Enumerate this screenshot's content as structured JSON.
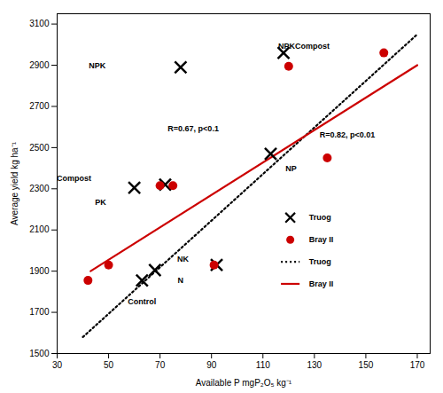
{
  "chart_data": {
    "type": "scatter",
    "xlabel": "Available P mgP₂O₅ kg⁻¹",
    "ylabel": "Average yield kg ha⁻¹",
    "xlim": [
      30,
      175
    ],
    "ylim": [
      1500,
      3150
    ],
    "xticks": [
      30,
      50,
      70,
      90,
      110,
      130,
      150,
      170
    ],
    "yticks": [
      1500,
      1700,
      1900,
      2100,
      2300,
      2500,
      2700,
      2900,
      3100
    ],
    "legend": "lower right",
    "series": [
      {
        "name": "Truog",
        "type": "scatter",
        "marker": "x",
        "color": "black",
        "x": [
          63,
          68,
          60,
          72,
          92,
          78,
          118,
          113
        ],
        "values": [
          1855,
          1905,
          2305,
          2320,
          1930,
          2890,
          2960,
          2470
        ],
        "labels": [
          "Control",
          "N",
          "PK",
          "Compost",
          "NK",
          "NPK",
          "NPKCompost",
          "NP"
        ]
      },
      {
        "name": "Bray II",
        "type": "scatter",
        "marker": "o",
        "color": "#cc0000",
        "x": [
          42,
          50,
          70,
          75,
          91,
          120,
          135,
          157
        ],
        "values": [
          1855,
          1930,
          2315,
          2315,
          1930,
          2895,
          2450,
          2960
        ]
      },
      {
        "name": "Truog",
        "type": "line",
        "line_style": "dotted",
        "color": "black",
        "x": [
          40,
          170
        ],
        "values": [
          1580,
          3050
        ]
      },
      {
        "name": "Bray II",
        "type": "line",
        "line_style": "solid",
        "color": "#cc0000",
        "x": [
          43,
          170
        ],
        "values": [
          1900,
          2900
        ]
      }
    ],
    "annotations": [
      {
        "text": "R=0.67, p<0.1",
        "x": 73,
        "y": 2590
      },
      {
        "text": "R=0.82, p<0.01",
        "x": 132,
        "y": 2560
      }
    ]
  }
}
